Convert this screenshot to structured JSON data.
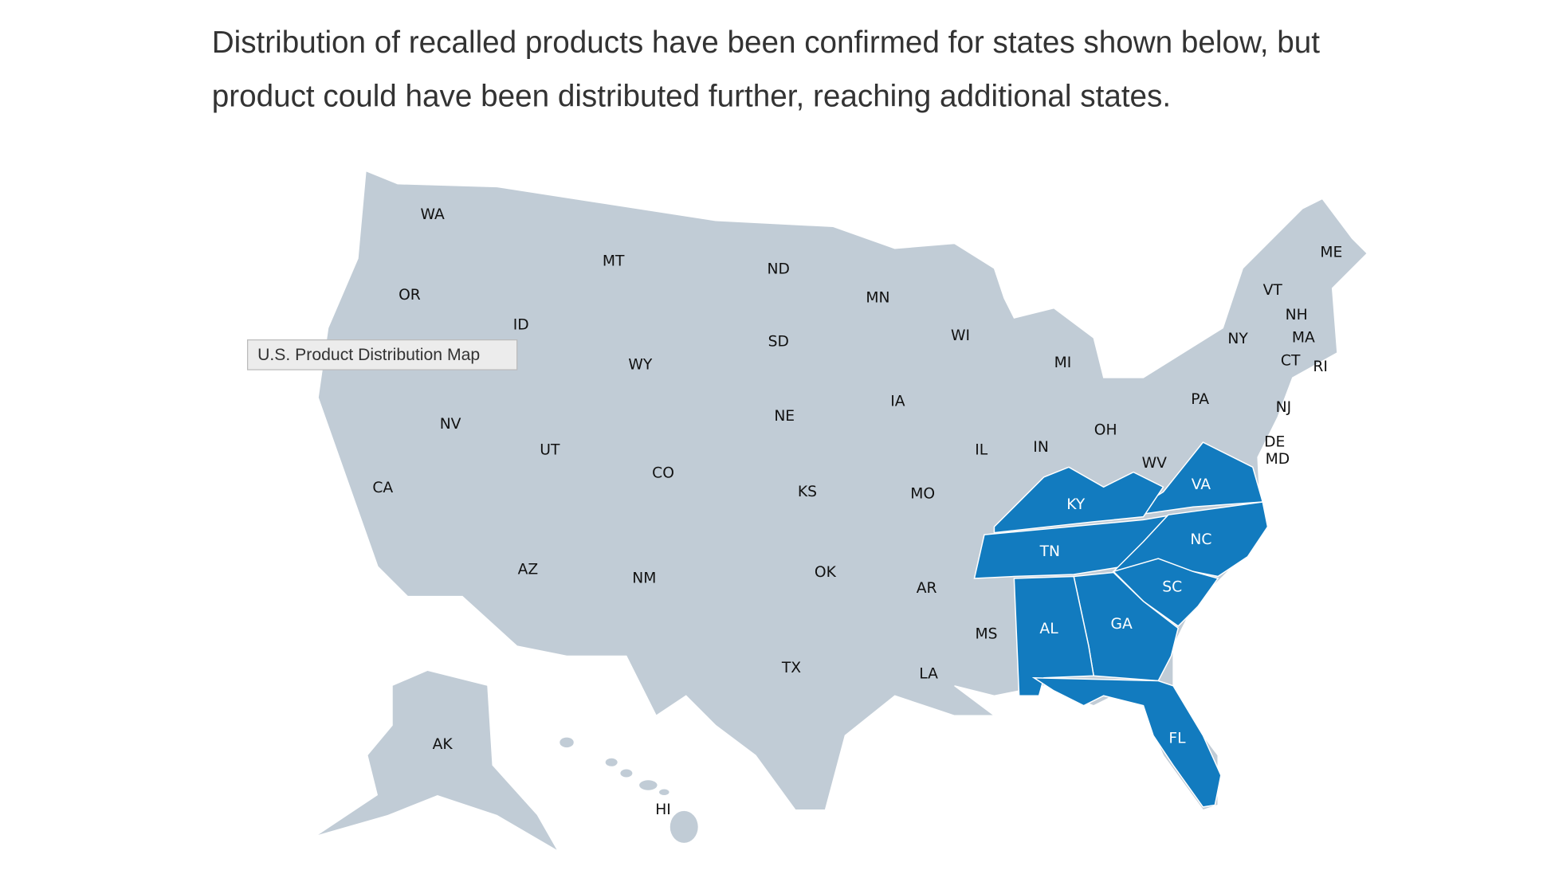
{
  "intro": {
    "line1": "Distribution of recalled products have been confirmed for states shown below, but",
    "line2": "product could have been distributed further, reaching additional states."
  },
  "map": {
    "tooltip": "U.S. Product Distribution Map",
    "base_color": "#c1ccd6",
    "confirmed_color": "#127bbf",
    "states": [
      {
        "label": "WA",
        "confirmed": false
      },
      {
        "label": "OR",
        "confirmed": false
      },
      {
        "label": "ID",
        "confirmed": false
      },
      {
        "label": "MT",
        "confirmed": false
      },
      {
        "label": "ND",
        "confirmed": false
      },
      {
        "label": "SD",
        "confirmed": false
      },
      {
        "label": "WY",
        "confirmed": false
      },
      {
        "label": "MN",
        "confirmed": false
      },
      {
        "label": "WI",
        "confirmed": false
      },
      {
        "label": "MI",
        "confirmed": false
      },
      {
        "label": "NV",
        "confirmed": false
      },
      {
        "label": "UT",
        "confirmed": false
      },
      {
        "label": "CO",
        "confirmed": false
      },
      {
        "label": "NE",
        "confirmed": false
      },
      {
        "label": "IA",
        "confirmed": false
      },
      {
        "label": "IL",
        "confirmed": false
      },
      {
        "label": "IN",
        "confirmed": false
      },
      {
        "label": "OH",
        "confirmed": false
      },
      {
        "label": "PA",
        "confirmed": false
      },
      {
        "label": "NY",
        "confirmed": false
      },
      {
        "label": "VT",
        "confirmed": false
      },
      {
        "label": "NH",
        "confirmed": false
      },
      {
        "label": "ME",
        "confirmed": false
      },
      {
        "label": "MA",
        "confirmed": false
      },
      {
        "label": "CT",
        "confirmed": false
      },
      {
        "label": "RI",
        "confirmed": false
      },
      {
        "label": "NJ",
        "confirmed": false
      },
      {
        "label": "DE",
        "confirmed": false
      },
      {
        "label": "MD",
        "confirmed": false
      },
      {
        "label": "WV",
        "confirmed": false
      },
      {
        "label": "VA",
        "confirmed": true
      },
      {
        "label": "KY",
        "confirmed": true
      },
      {
        "label": "KS",
        "confirmed": false
      },
      {
        "label": "MO",
        "confirmed": false
      },
      {
        "label": "CA",
        "confirmed": false
      },
      {
        "label": "AZ",
        "confirmed": false
      },
      {
        "label": "NM",
        "confirmed": false
      },
      {
        "label": "OK",
        "confirmed": false
      },
      {
        "label": "AR",
        "confirmed": false
      },
      {
        "label": "TN",
        "confirmed": true
      },
      {
        "label": "NC",
        "confirmed": true
      },
      {
        "label": "SC",
        "confirmed": true
      },
      {
        "label": "GA",
        "confirmed": true
      },
      {
        "label": "AL",
        "confirmed": true
      },
      {
        "label": "MS",
        "confirmed": false
      },
      {
        "label": "LA",
        "confirmed": false
      },
      {
        "label": "TX",
        "confirmed": false
      },
      {
        "label": "FL",
        "confirmed": true
      },
      {
        "label": "AK",
        "confirmed": false
      },
      {
        "label": "HI",
        "confirmed": false
      }
    ]
  }
}
